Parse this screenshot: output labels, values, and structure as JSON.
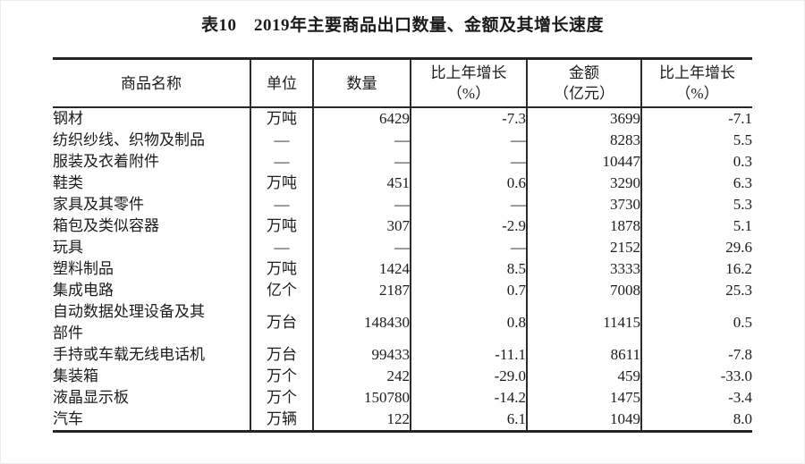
{
  "title": "表10　2019年主要商品出口数量、金额及其增长速度",
  "table": {
    "headers": [
      {
        "label": "商品名称",
        "sub": ""
      },
      {
        "label": "单位",
        "sub": ""
      },
      {
        "label": "数量",
        "sub": ""
      },
      {
        "label": "比上年增长",
        "sub": "（%）"
      },
      {
        "label": "金额",
        "sub": "（亿元）"
      },
      {
        "label": "比上年增长",
        "sub": "（%）"
      }
    ],
    "rows": [
      {
        "name": "钢材",
        "unit": "万吨",
        "quantity": "6429",
        "quantity_growth": "-7.3",
        "value": "3699",
        "value_growth": "-7.1"
      },
      {
        "name": "纺织纱线、织物及制品",
        "unit": "—",
        "quantity": "—",
        "quantity_growth": "—",
        "value": "8283",
        "value_growth": "5.5"
      },
      {
        "name": "服装及衣着附件",
        "unit": "—",
        "quantity": "—",
        "quantity_growth": "—",
        "value": "10447",
        "value_growth": "0.3"
      },
      {
        "name": "鞋类",
        "unit": "万吨",
        "quantity": "451",
        "quantity_growth": "0.6",
        "value": "3290",
        "value_growth": "6.3"
      },
      {
        "name": "家具及其零件",
        "unit": "—",
        "quantity": "—",
        "quantity_growth": "—",
        "value": "3730",
        "value_growth": "5.3"
      },
      {
        "name": "箱包及类似容器",
        "unit": "万吨",
        "quantity": "307",
        "quantity_growth": "-2.9",
        "value": "1878",
        "value_growth": "5.1"
      },
      {
        "name": "玩具",
        "unit": "—",
        "quantity": "—",
        "quantity_growth": "—",
        "value": "2152",
        "value_growth": "29.6"
      },
      {
        "name": "塑料制品",
        "unit": "万吨",
        "quantity": "1424",
        "quantity_growth": "8.5",
        "value": "3333",
        "value_growth": "16.2"
      },
      {
        "name": "集成电路",
        "unit": "亿个",
        "quantity": "2187",
        "quantity_growth": "0.7",
        "value": "7008",
        "value_growth": "25.3"
      },
      {
        "name": "自动数据处理设备及其\n部件",
        "unit": "万台",
        "quantity": "148430",
        "quantity_growth": "0.8",
        "value": "11415",
        "value_growth": "0.5"
      },
      {
        "name": "手持或车载无线电话机",
        "unit": "万台",
        "quantity": "99433",
        "quantity_growth": "-11.1",
        "value": "8611",
        "value_growth": "-7.8"
      },
      {
        "name": "集装箱",
        "unit": "万个",
        "quantity": "242",
        "quantity_growth": "-29.0",
        "value": "459",
        "value_growth": "-33.0"
      },
      {
        "name": "液晶显示板",
        "unit": "万个",
        "quantity": "150780",
        "quantity_growth": "-14.2",
        "value": "1475",
        "value_growth": "-3.4"
      },
      {
        "name": "汽车",
        "unit": "万辆",
        "quantity": "122",
        "quantity_growth": "6.1",
        "value": "1049",
        "value_growth": "8.0"
      }
    ]
  },
  "colors": {
    "text": "#1b1b1b",
    "border": "#262626",
    "background": "#ffffff"
  }
}
